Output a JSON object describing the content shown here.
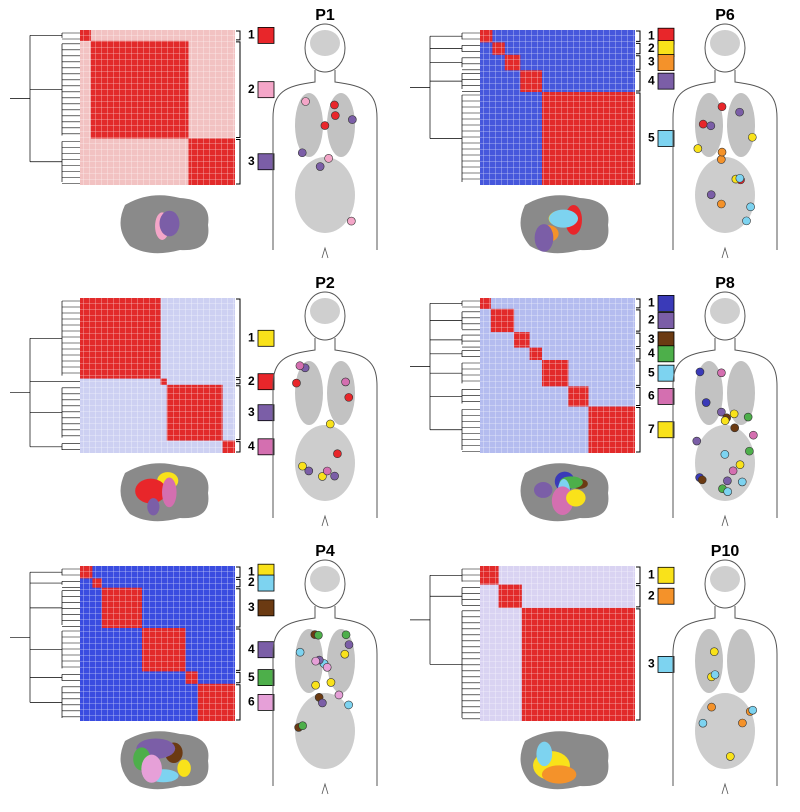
{
  "panels": [
    {
      "title": "P1",
      "clusters": [
        {
          "label": "1",
          "color": "#e8262a"
        },
        {
          "label": "2",
          "color": "#f4a6c8"
        },
        {
          "label": "3",
          "color": "#7b5ea7"
        }
      ]
    },
    {
      "title": "P6",
      "clusters": [
        {
          "label": "1",
          "color": "#e8262a"
        },
        {
          "label": "2",
          "color": "#f9e21a"
        },
        {
          "label": "3",
          "color": "#f4922a"
        },
        {
          "label": "4",
          "color": "#7b5ea7"
        },
        {
          "label": "5",
          "color": "#7dd3f0"
        }
      ]
    },
    {
      "title": "P2",
      "clusters": [
        {
          "label": "1",
          "color": "#f9e21a"
        },
        {
          "label": "2",
          "color": "#e8262a"
        },
        {
          "label": "3",
          "color": "#7b5ea7"
        },
        {
          "label": "4",
          "color": "#d46fb0"
        }
      ]
    },
    {
      "title": "P8",
      "clusters": [
        {
          "label": "1",
          "color": "#3a3ab8"
        },
        {
          "label": "2",
          "color": "#7b5ea7"
        },
        {
          "label": "3",
          "color": "#6b3a12"
        },
        {
          "label": "4",
          "color": "#4daf4a"
        },
        {
          "label": "5",
          "color": "#7dd3f0"
        },
        {
          "label": "6",
          "color": "#d46fb0"
        },
        {
          "label": "7",
          "color": "#f9e21a"
        }
      ]
    },
    {
      "title": "P4",
      "clusters": [
        {
          "label": "1",
          "color": "#f9e21a"
        },
        {
          "label": "2",
          "color": "#7dd3f0"
        },
        {
          "label": "3",
          "color": "#6b3a12"
        },
        {
          "label": "4",
          "color": "#7b5ea7"
        },
        {
          "label": "5",
          "color": "#4daf4a"
        },
        {
          "label": "6",
          "color": "#e6a0d8"
        }
      ]
    },
    {
      "title": "P10",
      "clusters": [
        {
          "label": "1",
          "color": "#f9e21a"
        },
        {
          "label": "2",
          "color": "#f4922a"
        },
        {
          "label": "3",
          "color": "#7dd3f0"
        }
      ]
    }
  ]
}
